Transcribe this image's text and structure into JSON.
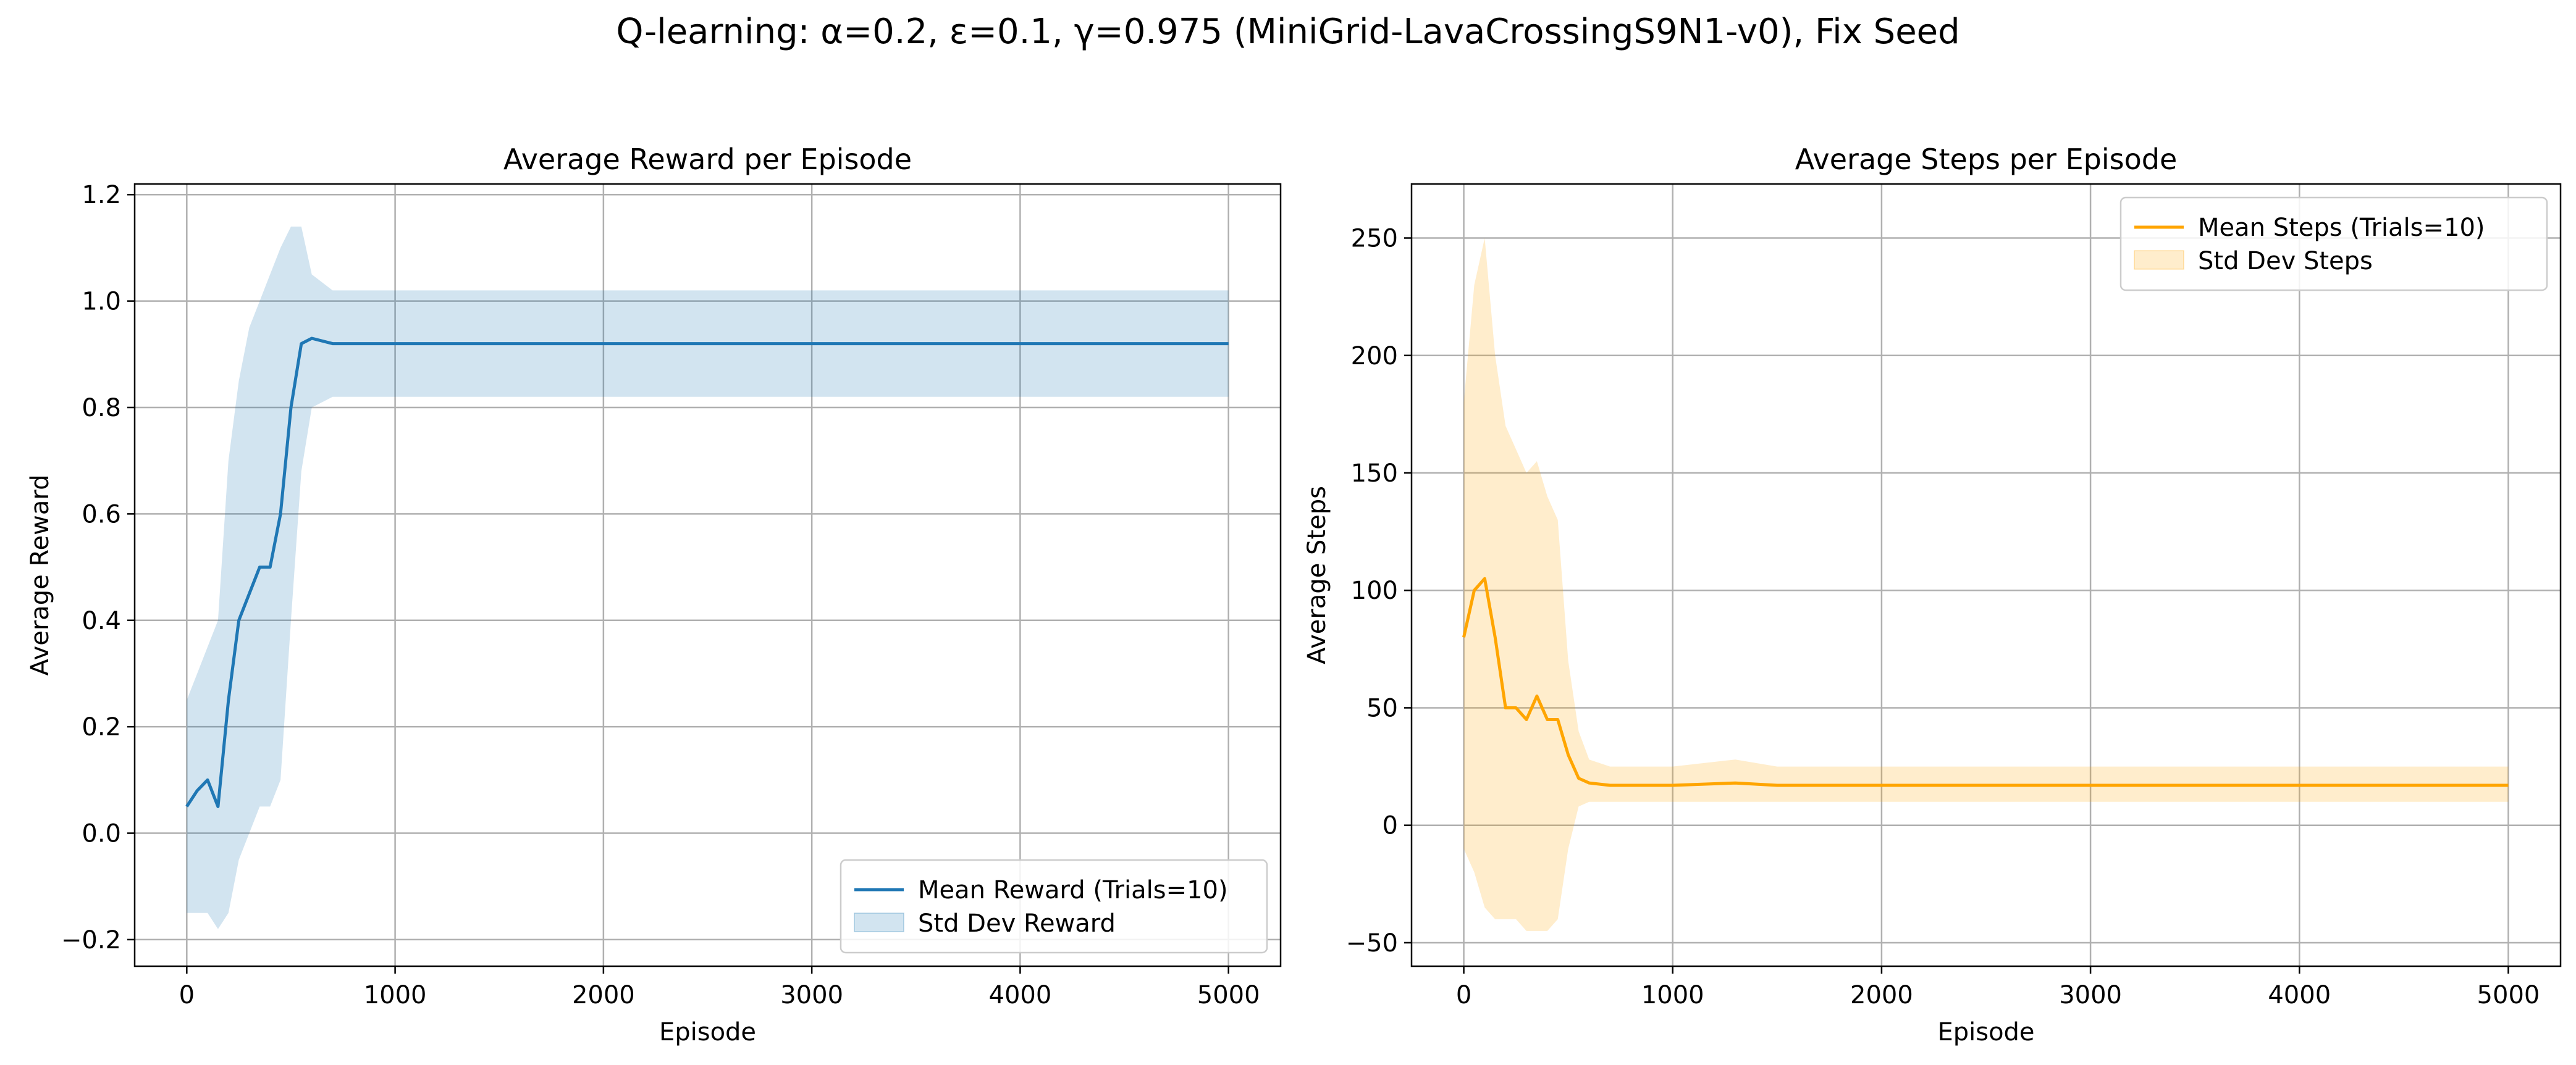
{
  "figure": {
    "suptitle": "Q-learning: α=0.2, ε=0.1, γ=0.975 (MiniGrid-LavaCrossingS9N1-v0), Fix Seed"
  },
  "colors": {
    "reward": "#1f77b4",
    "steps": "#ffa500",
    "grid": "#b0b0b0"
  },
  "chart_data": [
    {
      "type": "line",
      "title": "Average Reward per Episode",
      "xlabel": "Episode",
      "ylabel": "Average Reward",
      "xlim": [
        -250,
        5250
      ],
      "ylim": [
        -0.25,
        1.22
      ],
      "xticks": [
        0,
        1000,
        2000,
        3000,
        4000,
        5000
      ],
      "xtick_labels": [
        "0",
        "1000",
        "2000",
        "3000",
        "4000",
        "5000"
      ],
      "yticks": [
        -0.2,
        0.0,
        0.2,
        0.4,
        0.6,
        0.8,
        1.0,
        1.2
      ],
      "ytick_labels": [
        "−0.2",
        "0.0",
        "0.2",
        "0.4",
        "0.6",
        "0.8",
        "1.0",
        "1.2"
      ],
      "grid": true,
      "legend_position": "lower-right",
      "series": [
        {
          "name": "Mean Reward (Trials=10)",
          "kind": "mean",
          "x": [
            0,
            50,
            100,
            150,
            200,
            250,
            300,
            350,
            400,
            450,
            500,
            550,
            600,
            700,
            800,
            1000,
            1500,
            2000,
            2500,
            3000,
            3500,
            4000,
            4500,
            5000
          ],
          "y": [
            0.05,
            0.08,
            0.1,
            0.05,
            0.25,
            0.4,
            0.45,
            0.5,
            0.5,
            0.6,
            0.8,
            0.92,
            0.93,
            0.92,
            0.92,
            0.92,
            0.92,
            0.92,
            0.92,
            0.92,
            0.92,
            0.92,
            0.92,
            0.92
          ]
        },
        {
          "name": "Std Dev Reward",
          "kind": "band",
          "x": [
            0,
            50,
            100,
            150,
            200,
            250,
            300,
            350,
            400,
            450,
            500,
            550,
            600,
            700,
            800,
            1000,
            1500,
            2000,
            2500,
            3000,
            3500,
            4000,
            4500,
            5000
          ],
          "upper": [
            0.25,
            0.3,
            0.35,
            0.4,
            0.7,
            0.85,
            0.95,
            1.0,
            1.05,
            1.1,
            1.14,
            1.14,
            1.05,
            1.02,
            1.02,
            1.02,
            1.02,
            1.02,
            1.02,
            1.02,
            1.02,
            1.02,
            1.02,
            1.02
          ],
          "lower": [
            -0.15,
            -0.15,
            -0.15,
            -0.18,
            -0.15,
            -0.05,
            0.0,
            0.05,
            0.05,
            0.1,
            0.4,
            0.68,
            0.8,
            0.82,
            0.82,
            0.82,
            0.82,
            0.82,
            0.82,
            0.82,
            0.82,
            0.82,
            0.82,
            0.82
          ]
        }
      ]
    },
    {
      "type": "line",
      "title": "Average Steps per Episode",
      "xlabel": "Episode",
      "ylabel": "Average Steps",
      "xlim": [
        -250,
        5250
      ],
      "ylim": [
        -60,
        273
      ],
      "xticks": [
        0,
        1000,
        2000,
        3000,
        4000,
        5000
      ],
      "xtick_labels": [
        "0",
        "1000",
        "2000",
        "3000",
        "4000",
        "5000"
      ],
      "yticks": [
        -50,
        0,
        50,
        100,
        150,
        200,
        250
      ],
      "ytick_labels": [
        "−50",
        "0",
        "50",
        "100",
        "150",
        "200",
        "250"
      ],
      "grid": true,
      "legend_position": "upper-right",
      "series": [
        {
          "name": "Mean Steps (Trials=10)",
          "kind": "mean",
          "x": [
            0,
            50,
            100,
            150,
            200,
            250,
            300,
            350,
            400,
            450,
            500,
            550,
            600,
            700,
            800,
            1000,
            1300,
            1500,
            2000,
            2500,
            3000,
            3500,
            4000,
            4500,
            5000
          ],
          "y": [
            80,
            100,
            105,
            80,
            50,
            50,
            45,
            55,
            45,
            45,
            30,
            20,
            18,
            17,
            17,
            17,
            18,
            17,
            17,
            17,
            17,
            17,
            17,
            17,
            17
          ]
        },
        {
          "name": "Std Dev Steps",
          "kind": "band",
          "x": [
            0,
            50,
            100,
            150,
            200,
            250,
            300,
            350,
            400,
            450,
            500,
            550,
            600,
            700,
            800,
            1000,
            1300,
            1500,
            2000,
            2500,
            3000,
            3500,
            4000,
            4500,
            5000
          ],
          "upper": [
            180,
            230,
            250,
            200,
            170,
            160,
            150,
            155,
            140,
            130,
            70,
            40,
            28,
            25,
            25,
            25,
            28,
            25,
            25,
            25,
            25,
            25,
            25,
            25,
            25
          ],
          "lower": [
            -10,
            -20,
            -35,
            -40,
            -40,
            -40,
            -45,
            -45,
            -45,
            -40,
            -10,
            8,
            10,
            10,
            10,
            10,
            10,
            10,
            10,
            10,
            10,
            10,
            10,
            10,
            10
          ]
        }
      ]
    }
  ]
}
